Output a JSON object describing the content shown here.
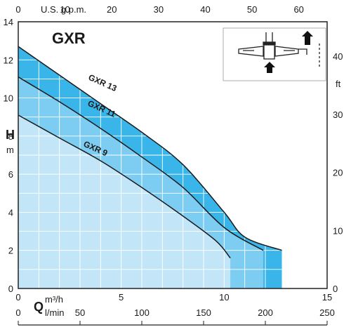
{
  "chart_data": {
    "type": "area",
    "title": "GXR",
    "ylabel": "H",
    "yunit": "m",
    "ylabel_right": "ft",
    "xlabel": "Q",
    "xunit_primary": "m³/h",
    "xunit_bottom": "l/min",
    "xunit_top": "U.S. g.p.m.",
    "xlim": [
      0,
      15
    ],
    "ylim": [
      0,
      14
    ],
    "x_ticks": [
      "0",
      "5",
      "10",
      "15"
    ],
    "y_ticks": [
      "0",
      "2",
      "4",
      "6",
      "8",
      "10",
      "12",
      "14"
    ],
    "top_ticks": [
      "0",
      "10",
      "20",
      "30",
      "40",
      "50",
      "60"
    ],
    "bottom_ticks": [
      "0",
      "50",
      "100",
      "150",
      "200",
      "250"
    ],
    "right_ticks": [
      "0",
      "10",
      "20",
      "30",
      "40"
    ],
    "grid": true,
    "series": [
      {
        "name": "GXR 13",
        "color": "#39b5ea",
        "points": [
          [
            0,
            12.7
          ],
          [
            2,
            11.2
          ],
          [
            4,
            9.7
          ],
          [
            6,
            8.2
          ],
          [
            8,
            6.5
          ],
          [
            10,
            4.0
          ],
          [
            11,
            2.7
          ],
          [
            12.8,
            2.0
          ]
        ]
      },
      {
        "name": "GXR 11",
        "color": "#7ccdf1",
        "points": [
          [
            0,
            11.1
          ],
          [
            2,
            9.8
          ],
          [
            4,
            8.4
          ],
          [
            6,
            6.9
          ],
          [
            8,
            5.3
          ],
          [
            10,
            3.2
          ],
          [
            11.9,
            2.0
          ]
        ]
      },
      {
        "name": "GXR 9",
        "color": "#c2e6f8",
        "points": [
          [
            0,
            9.1
          ],
          [
            2,
            7.9
          ],
          [
            4,
            6.7
          ],
          [
            6,
            5.3
          ],
          [
            8,
            3.8
          ],
          [
            9.6,
            2.5
          ],
          [
            10.3,
            1.6
          ]
        ]
      }
    ]
  }
}
